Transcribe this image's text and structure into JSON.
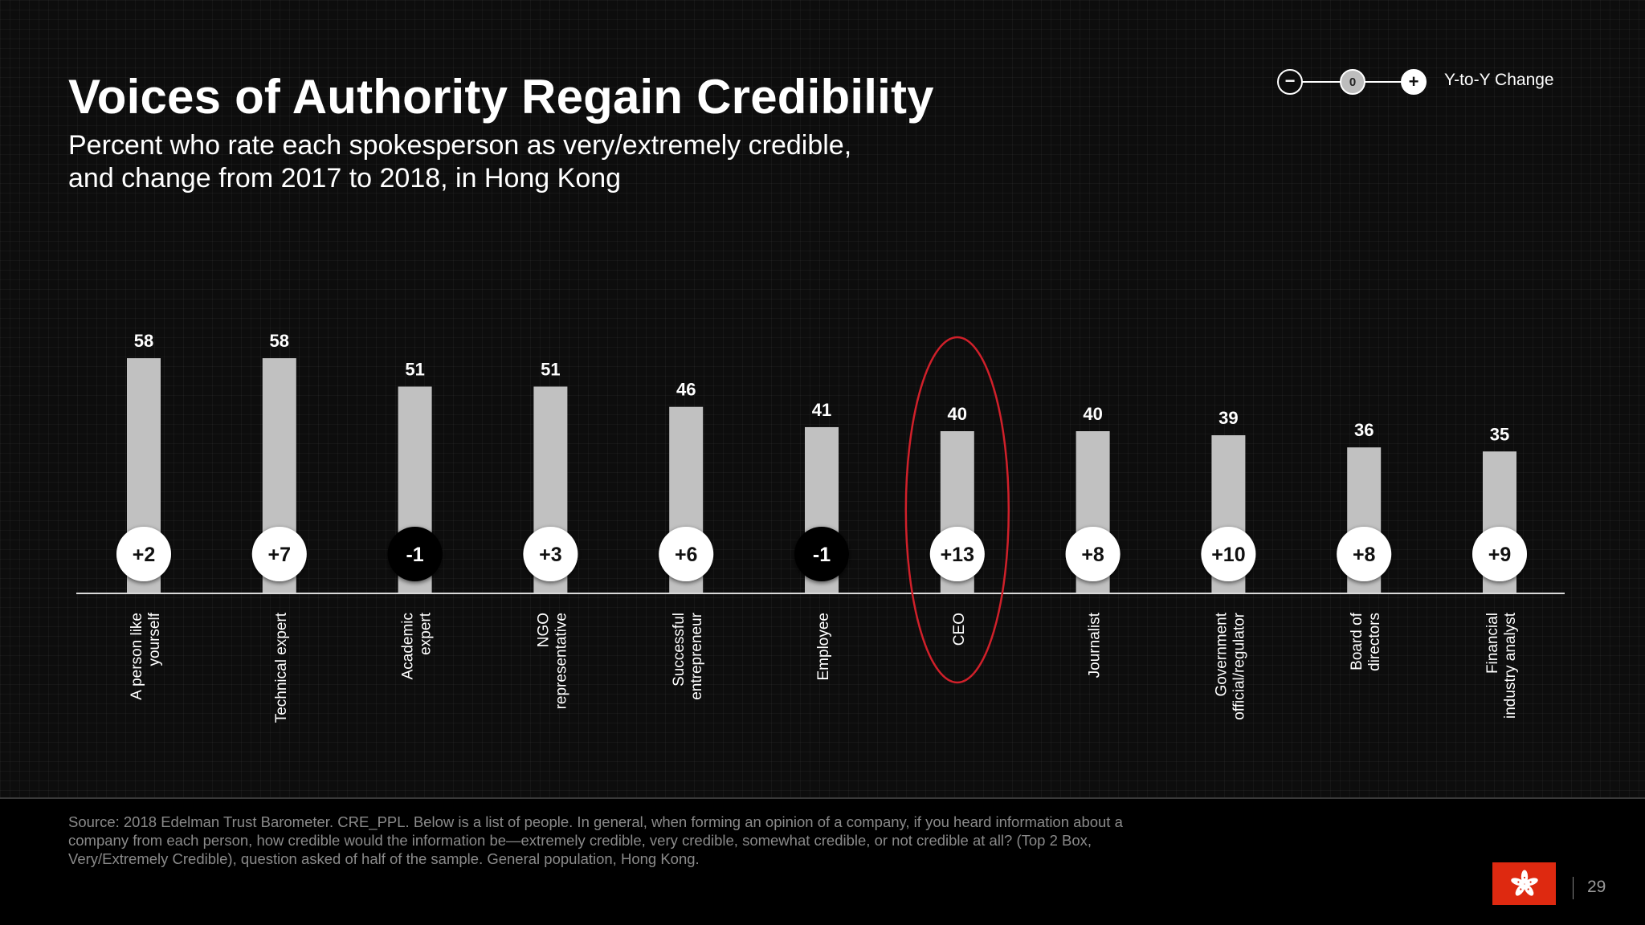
{
  "title": "Voices of Authority Regain Credibility",
  "subtitle_line1": "Percent who rate each spokesperson as very/extremely credible,",
  "subtitle_line2": "and change from 2017 to 2018, in Hong Kong",
  "legend": {
    "minus_symbol": "−",
    "zero_symbol": "0",
    "plus_symbol": "+",
    "label": "Y-to-Y Change"
  },
  "colors": {
    "bar": "#c1c1c1",
    "positive_bubble": "#ffffff",
    "negative_bubble": "#000000",
    "highlight": "#d0202a",
    "flag": "#de2910"
  },
  "chart_data": {
    "type": "bar",
    "categories": [
      [
        "A person like",
        "yourself"
      ],
      [
        "Technical expert"
      ],
      [
        "Academic",
        "expert"
      ],
      [
        "NGO",
        "representative"
      ],
      [
        "Successful",
        "entrepreneur"
      ],
      [
        "Employee"
      ],
      [
        "CEO"
      ],
      [
        "Journalist"
      ],
      [
        "Government",
        "official/regulator"
      ],
      [
        "Board of",
        "directors"
      ],
      [
        "Financial",
        "industry analyst"
      ]
    ],
    "values": [
      58,
      58,
      51,
      51,
      46,
      41,
      40,
      40,
      39,
      36,
      35
    ],
    "changes": [
      "+2",
      "+7",
      "-1",
      "+3",
      "+6",
      "-1",
      "+13",
      "+8",
      "+10",
      "+8",
      "+9"
    ],
    "highlighted_category": "CEO",
    "ylim": [
      0,
      100
    ]
  },
  "source": "Source: 2018 Edelman Trust Barometer. CRE_PPL. Below is a list of people. In general, when forming an opinion of a company, if you heard information about a company from each person, how credible would the information be—extremely credible, very credible, somewhat credible, or not credible at all? (Top 2 Box, Very/Extremely Credible), question asked of half of the sample. General population, Hong Kong.",
  "page_number": "29",
  "flag_icon": "hong-kong-flag-icon"
}
